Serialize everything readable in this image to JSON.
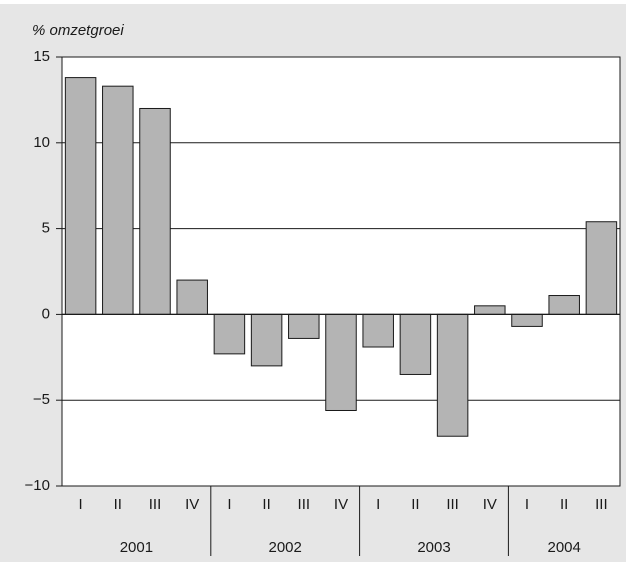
{
  "chart_data": {
    "type": "bar",
    "y_label": "% omzetgroei",
    "categories": [
      "I",
      "II",
      "III",
      "IV",
      "I",
      "II",
      "III",
      "IV",
      "I",
      "II",
      "III",
      "IV",
      "I",
      "II",
      "III"
    ],
    "category_groups": [
      "2001",
      "2001",
      "2001",
      "2001",
      "2002",
      "2002",
      "2002",
      "2002",
      "2003",
      "2003",
      "2003",
      "2003",
      "2004",
      "2004",
      "2004"
    ],
    "values": [
      13.8,
      13.3,
      12.0,
      2.0,
      -2.3,
      -3.0,
      -1.4,
      -5.6,
      -1.9,
      -3.5,
      -7.1,
      0.5,
      -0.7,
      1.1,
      5.4
    ],
    "color": "#b4b4b4",
    "ylim": [
      -10,
      15
    ],
    "yticks": [
      {
        "value": -10,
        "label": "−10"
      },
      {
        "value": -5,
        "label": "−5"
      },
      0,
      5,
      10,
      15
    ],
    "grid": true
  }
}
